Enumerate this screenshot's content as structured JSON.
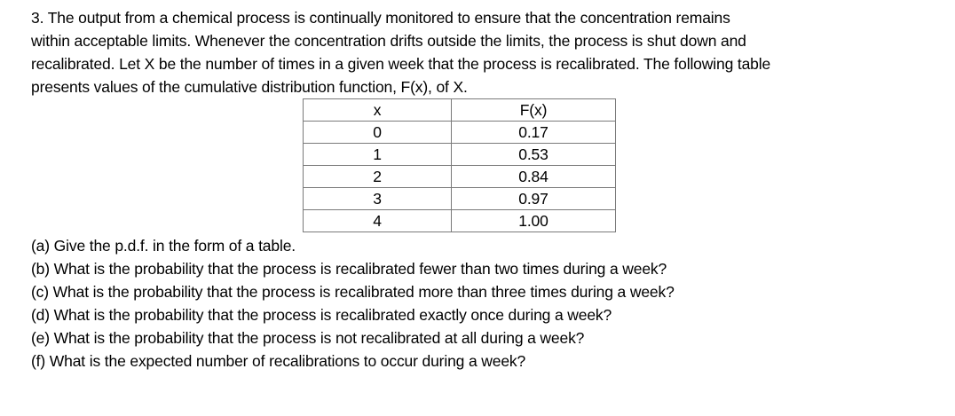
{
  "document": {
    "intro_lines": [
      "3. The output from a chemical process is continually monitored to ensure that the concentration remains",
      "within acceptable limits. Whenever the concentration drifts outside the limits, the process is shut down and",
      "recalibrated. Let X be the number of times in a given week that the process is recalibrated. The following table",
      "presents values of the cumulative distribution function, F(x), of X."
    ],
    "questions": [
      "(a) Give the p.d.f. in the form of a table.",
      "(b) What is the probability that the process is recalibrated fewer than two times during a week?",
      "(c) What is the probability that the process is recalibrated more than three times during a week?",
      "(d) What is the probability that the process is recalibrated exactly once during a week?",
      "(e) What is the probability that the process is not recalibrated at all during a week?",
      "(f) What is the expected number of recalibrations to occur during a week?"
    ]
  },
  "table": {
    "headers": [
      "x",
      "F(x)"
    ],
    "rows": [
      [
        "0",
        "0.17"
      ],
      [
        "1",
        "0.53"
      ],
      [
        "2",
        "0.84"
      ],
      [
        "3",
        "0.97"
      ],
      [
        "4",
        "1.00"
      ]
    ],
    "border_color": "#7a7a7a"
  },
  "colors": {
    "background": "#ffffff",
    "text": "#000000"
  }
}
